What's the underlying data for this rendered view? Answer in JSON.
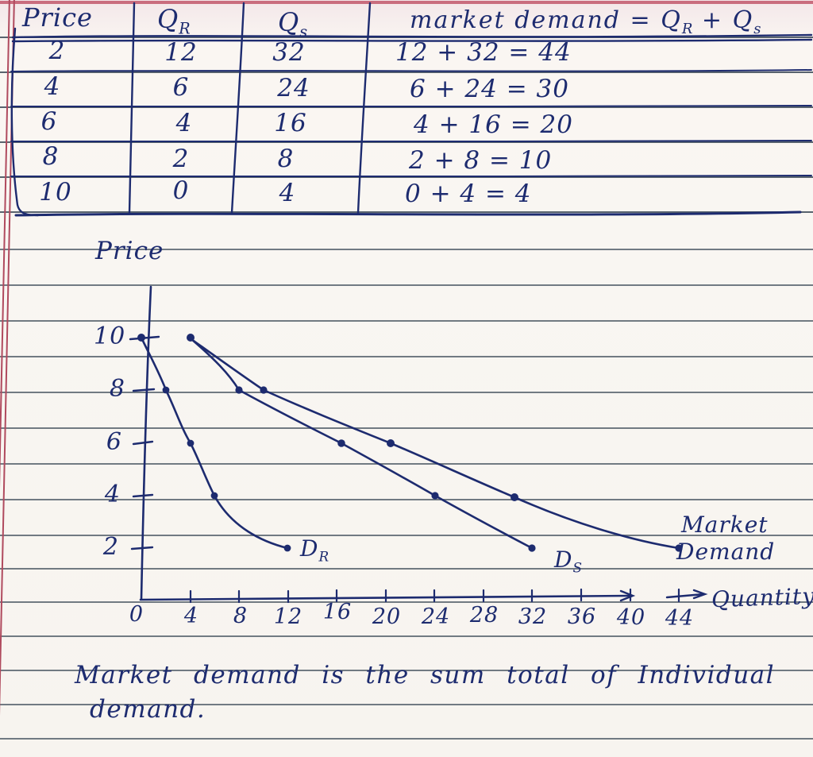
{
  "colors": {
    "ink": "#1d2b6f",
    "ruled_line": "#4f5b66",
    "margin_line": "#b04a5e"
  },
  "table": {
    "headers": {
      "price": "Price",
      "qr_main": "Q",
      "qr_sub": "R",
      "qs_main": "Q",
      "qs_sub": "s",
      "market_prefix": "market demand = Q",
      "market_sub1": "R",
      "market_mid": " + Q",
      "market_sub2": "s"
    },
    "rows": [
      {
        "price": "2",
        "qr": "12",
        "qs": "32",
        "sum": "12 + 32 = 44"
      },
      {
        "price": "4",
        "qr": "6",
        "qs": "24",
        "sum": "6 + 24 = 30"
      },
      {
        "price": "6",
        "qr": "4",
        "qs": "16",
        "sum": "4 + 16 = 20"
      },
      {
        "price": "8",
        "qr": "2",
        "qs": "8",
        "sum": "2 + 8 = 10"
      },
      {
        "price": "10",
        "qr": "0",
        "qs": "4",
        "sum": "0 + 4 = 4"
      }
    ]
  },
  "graph": {
    "ylabel": "Price",
    "xlabel": "Quantity",
    "y_ticks": [
      "10",
      "8",
      "6",
      "4",
      "2"
    ],
    "x_ticks": [
      "0",
      "4",
      "8",
      "12",
      "16",
      "20",
      "24",
      "28",
      "32",
      "36",
      "40",
      "44"
    ],
    "dr_main": "D",
    "dr_sub": "R",
    "ds_main": "D",
    "ds_sub": "S",
    "market_label_line1": "Market",
    "market_label_line2": "Demand"
  },
  "note": {
    "line1": "Market demand is the sum total of Individual",
    "line2": "demand."
  },
  "chart_data": {
    "type": "line",
    "title": "",
    "xlabel": "Quantity",
    "ylabel": "Price",
    "x_ticks": [
      0,
      4,
      8,
      12,
      16,
      20,
      24,
      28,
      32,
      36,
      40,
      44
    ],
    "y_ticks": [
      2,
      4,
      6,
      8,
      10
    ],
    "xlim": [
      0,
      46
    ],
    "ylim": [
      0,
      12
    ],
    "grid": false,
    "legend_position": "inline-labels",
    "series": [
      {
        "name": "DR",
        "x": [
          0,
          2,
          4,
          6,
          12
        ],
        "y": [
          10,
          8,
          6,
          4,
          2
        ]
      },
      {
        "name": "DS",
        "x": [
          4,
          8,
          16,
          24,
          32
        ],
        "y": [
          10,
          8,
          6,
          4,
          2
        ]
      },
      {
        "name": "Market Demand",
        "x": [
          4,
          10,
          20,
          30,
          44
        ],
        "y": [
          10,
          8,
          6,
          4,
          2
        ]
      }
    ]
  }
}
